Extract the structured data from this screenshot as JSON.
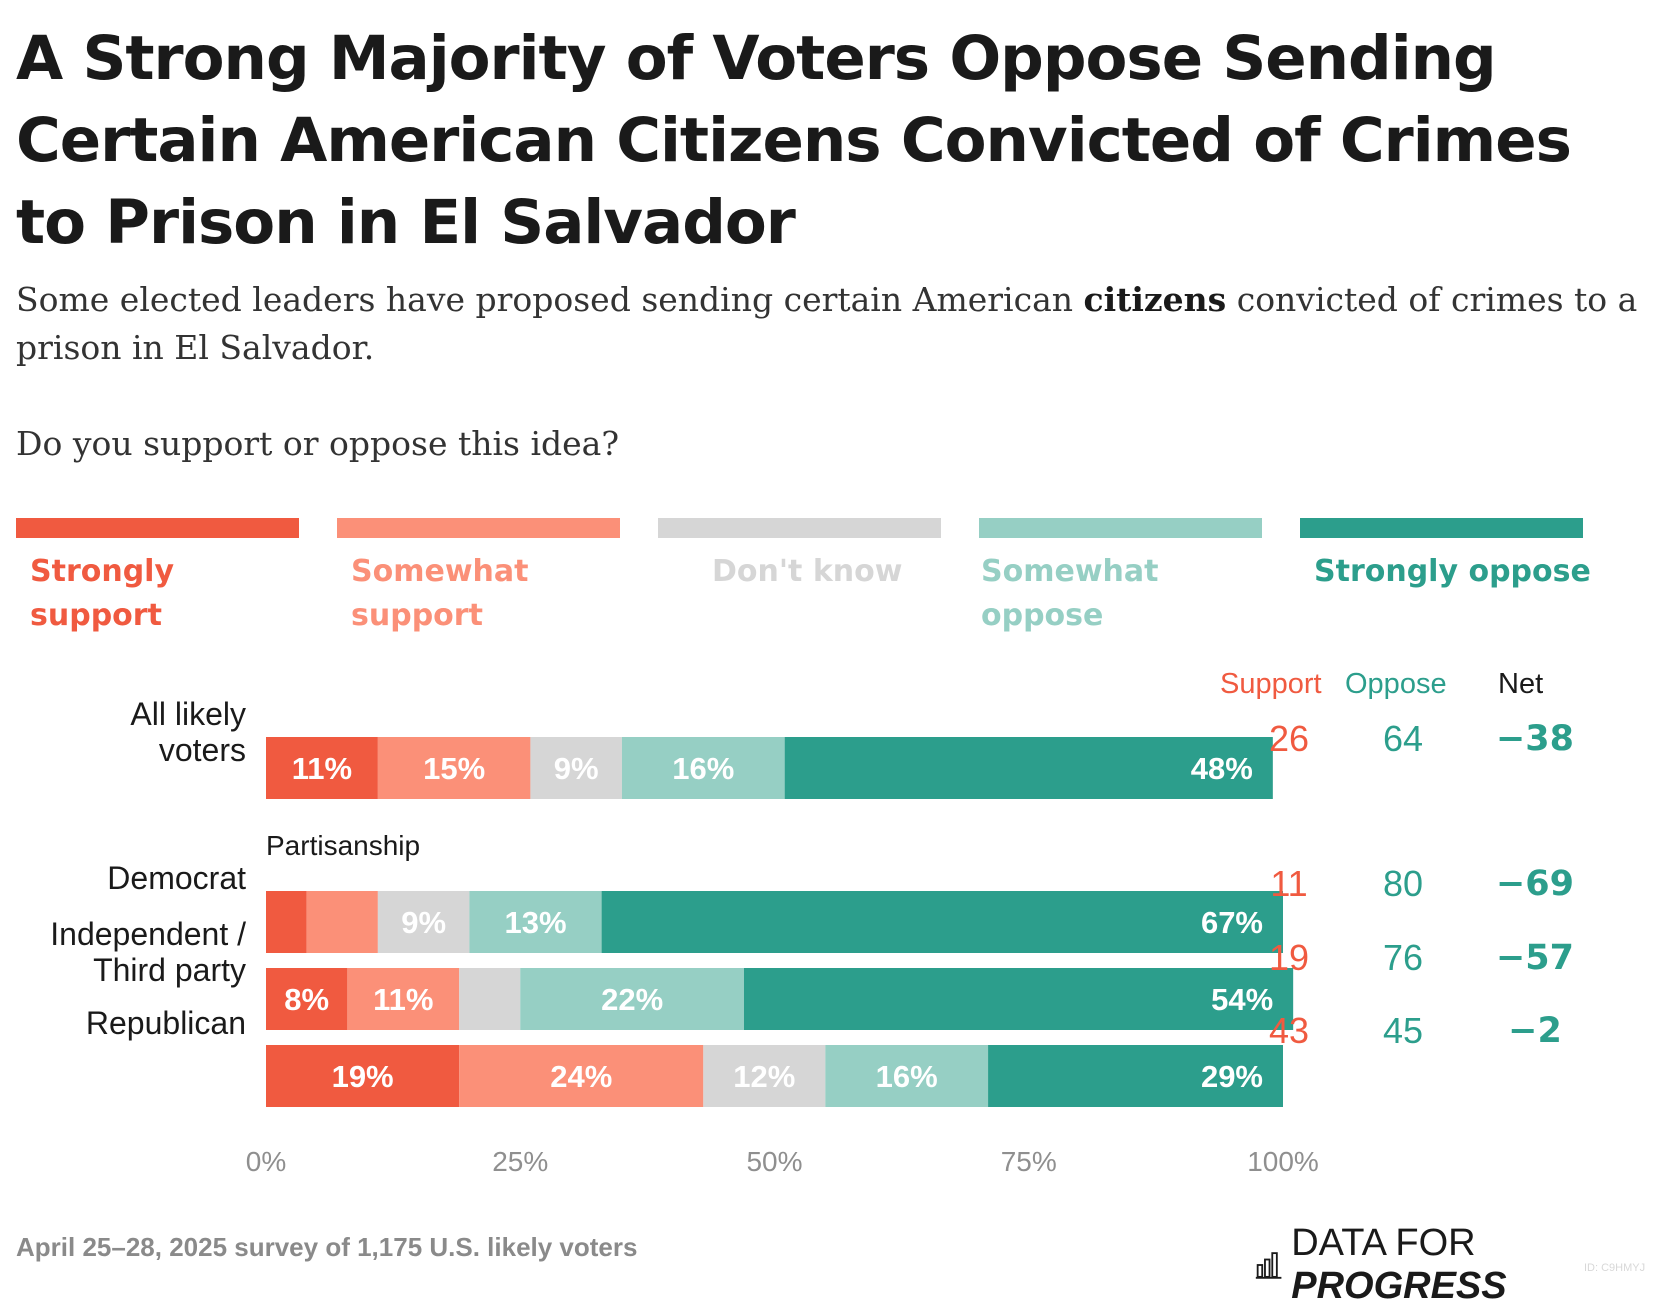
{
  "title": "A Strong Majority of Voters Oppose Sending Certain American Citizens Convicted of Crimes to Prison in El Salvador",
  "subtitle_before": "Some elected leaders have proposed sending certain American ",
  "subtitle_bold": "citizens",
  "subtitle_after": " convicted of crimes to a prison in El Salvador.",
  "question": "Do you support or oppose this idea?",
  "legend": [
    {
      "label": "Strongly support",
      "color": "#f05a40"
    },
    {
      "label": "Somewhat support",
      "color": "#fb9078"
    },
    {
      "label": "Don't know",
      "color": "#d6d6d6"
    },
    {
      "label": "Somewhat oppose",
      "color": "#96cfc4"
    },
    {
      "label": "Strongly oppose",
      "color": "#2c9e8c"
    }
  ],
  "column_headers": {
    "support": "Support",
    "oppose": "Oppose",
    "net": "Net"
  },
  "group_label": "Partisanship",
  "rows": [
    {
      "label": "All likely voters",
      "support": "26",
      "oppose": "64",
      "net": "−38"
    },
    {
      "label": "Democrat",
      "support": "11",
      "oppose": "80",
      "net": "−69"
    },
    {
      "label": "Independent / Third party",
      "support": "19",
      "oppose": "76",
      "net": "−57"
    },
    {
      "label": "Republican",
      "support": "43",
      "oppose": "45",
      "net": "−2"
    }
  ],
  "chart_data": {
    "type": "bar",
    "orientation": "horizontal",
    "stacked": true,
    "title": "A Strong Majority of Voters Oppose Sending Certain American Citizens Convicted of Crimes to Prison in El Salvador",
    "categories": [
      "All likely voters",
      "Democrat",
      "Independent / Third party",
      "Republican"
    ],
    "series": [
      {
        "name": "Strongly support",
        "color": "#f05a40",
        "values": [
          11,
          4,
          8,
          19
        ],
        "data_labels": [
          "11%",
          "",
          "8%",
          "19%"
        ]
      },
      {
        "name": "Somewhat support",
        "color": "#fb9078",
        "values": [
          15,
          7,
          11,
          24
        ],
        "data_labels": [
          "15%",
          "",
          "11%",
          "24%"
        ]
      },
      {
        "name": "Don't know",
        "color": "#d6d6d6",
        "values": [
          9,
          9,
          6,
          12
        ],
        "data_labels": [
          "9%",
          "9%",
          "",
          "12%"
        ]
      },
      {
        "name": "Somewhat oppose",
        "color": "#96cfc4",
        "values": [
          16,
          13,
          22,
          16
        ],
        "data_labels": [
          "16%",
          "13%",
          "22%",
          "16%"
        ]
      },
      {
        "name": "Strongly oppose",
        "color": "#2c9e8c",
        "values": [
          48,
          67,
          54,
          29
        ],
        "data_labels": [
          "48%",
          "67%",
          "54%",
          "29%"
        ]
      }
    ],
    "xlim": [
      0,
      100
    ],
    "xticks": [
      0,
      25,
      50,
      75,
      100
    ],
    "xtick_labels": [
      "0%",
      "25%",
      "50%",
      "75%",
      "100%"
    ],
    "grid": false,
    "legend_position": "top"
  },
  "footer": "April 25–28, 2025 survey of 1,175 U.S. likely voters",
  "logo": {
    "text_regular": "DATA FOR ",
    "text_bold": "PROGRESS",
    "icon": "bar-chart-logo-icon"
  },
  "chart_id": "ID: C9HMYJ"
}
